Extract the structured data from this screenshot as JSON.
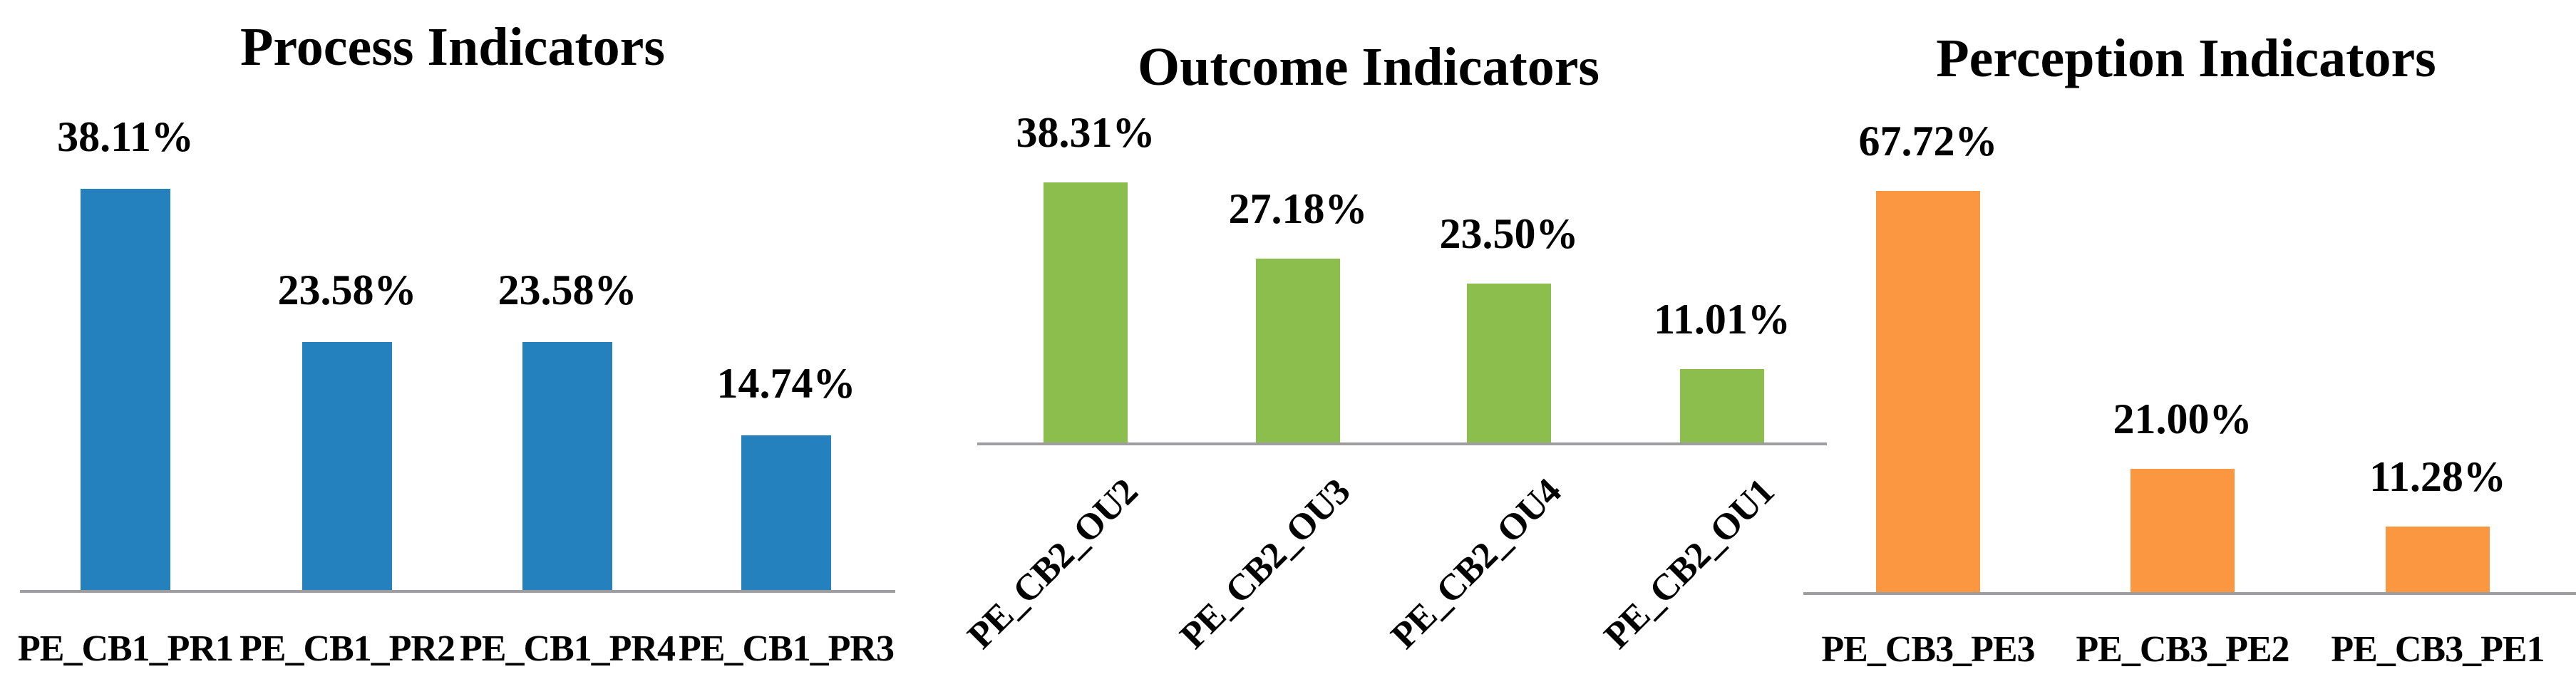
{
  "figure": {
    "background_color": "#ffffff",
    "axis_line_color": "#9e9ea0",
    "text_color": "#000000"
  },
  "chart_data": [
    {
      "type": "bar",
      "title": "Process Indicators",
      "categories": [
        "PE_CB1_PR1",
        "PE_CB1_PR2",
        "PE_CB1_PR4",
        "PE_CB1_PR3"
      ],
      "values": [
        38.11,
        23.58,
        23.58,
        14.74
      ],
      "data_labels": [
        "38.11%",
        "23.58%",
        "23.58%",
        "14.74%"
      ],
      "value_suffix": "%",
      "bar_color": "#2581be",
      "xlabel": "",
      "ylabel": "",
      "ylim": [
        0,
        40
      ],
      "y_axis_visible": false,
      "grid": false,
      "legend": false,
      "tick_label_rotation": 0
    },
    {
      "type": "bar",
      "title": "Outcome Indicators",
      "categories": [
        "PE_CB2_OU2",
        "PE_CB2_OU3",
        "PE_CB2_OU4",
        "PE_CB2_OU1"
      ],
      "values": [
        38.31,
        27.18,
        23.5,
        11.01
      ],
      "data_labels": [
        "38.31%",
        "27.18%",
        "23.50%",
        "11.01%"
      ],
      "value_suffix": "%",
      "bar_color": "#8cbe4d",
      "xlabel": "",
      "ylabel": "",
      "ylim": [
        0,
        40
      ],
      "y_axis_visible": false,
      "grid": false,
      "legend": false,
      "tick_label_rotation": 45
    },
    {
      "type": "bar",
      "title": "Perception Indicators",
      "categories": [
        "PE_CB3_PE3",
        "PE_CB3_PE2",
        "PE_CB3_PE1"
      ],
      "values": [
        67.72,
        21.0,
        11.28
      ],
      "data_labels": [
        "67.72%",
        "21.00%",
        "11.28%"
      ],
      "value_suffix": "%",
      "bar_color": "#fa9740",
      "xlabel": "",
      "ylabel": "",
      "ylim": [
        0,
        70
      ],
      "y_axis_visible": false,
      "grid": false,
      "legend": false,
      "tick_label_rotation": 0
    }
  ]
}
